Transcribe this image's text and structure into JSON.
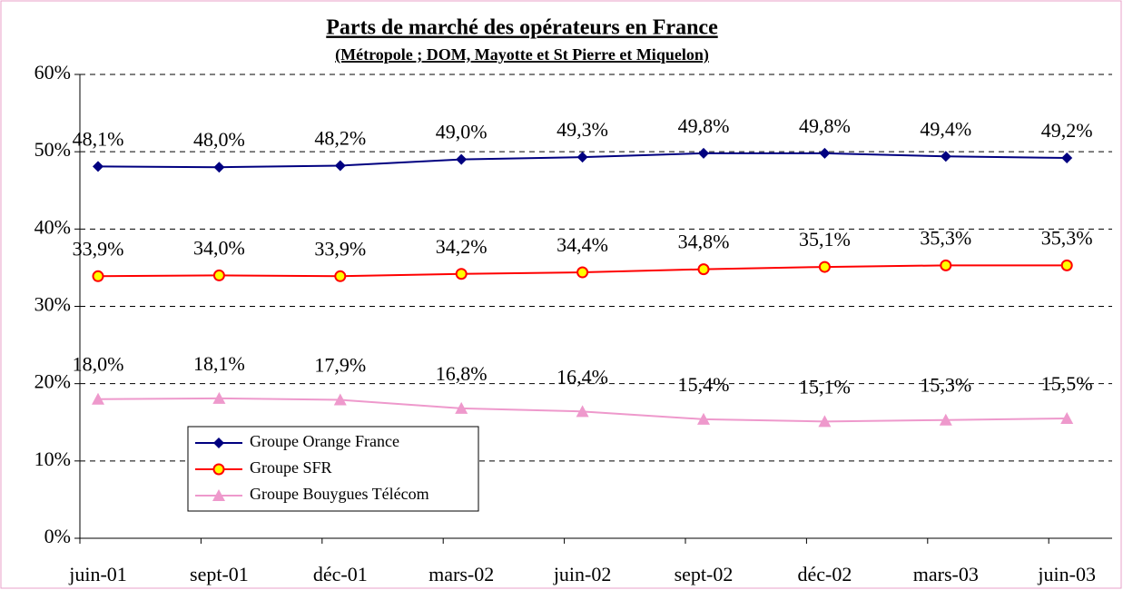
{
  "chart_data": {
    "type": "line",
    "title": "Parts de marché des opérateurs en France",
    "subtitle": "(Métropole ; DOM, Mayotte et St Pierre et Miquelon)",
    "categories": [
      "juin-01",
      "sept-01",
      "déc-01",
      "mars-02",
      "juin-02",
      "sept-02",
      "déc-02",
      "mars-03",
      "juin-03"
    ],
    "series": [
      {
        "name": "Groupe Orange France",
        "color": "#000080",
        "marker": "diamond",
        "values": [
          48.1,
          48.0,
          48.2,
          49.0,
          49.3,
          49.8,
          49.8,
          49.4,
          49.2
        ],
        "value_labels": [
          "48,1%",
          "48,0%",
          "48,2%",
          "49,0%",
          "49,3%",
          "49,8%",
          "49,8%",
          "49,4%",
          "49,2%"
        ]
      },
      {
        "name": "Groupe SFR",
        "color": "#ff0000",
        "marker": "circle",
        "values": [
          33.9,
          34.0,
          33.9,
          34.2,
          34.4,
          34.8,
          35.1,
          35.3,
          35.3
        ],
        "value_labels": [
          "33,9%",
          "34,0%",
          "33,9%",
          "34,2%",
          "34,4%",
          "34,8%",
          "35,1%",
          "35,3%",
          "35,3%"
        ]
      },
      {
        "name": "Groupe Bouygues Télécom",
        "color": "#ee99cc",
        "marker": "triangle",
        "values": [
          18.0,
          18.1,
          17.9,
          16.8,
          16.4,
          15.4,
          15.1,
          15.3,
          15.5
        ],
        "value_labels": [
          "18,0%",
          "18,1%",
          "17,9%",
          "16,8%",
          "16,4%",
          "15,4%",
          "15,1%",
          "15,3%",
          "15,5%"
        ]
      }
    ],
    "ylim": [
      0,
      60
    ],
    "yticks": [
      {
        "value": 0,
        "label": "0%"
      },
      {
        "value": 10,
        "label": "10%"
      },
      {
        "value": 20,
        "label": "20%"
      },
      {
        "value": 30,
        "label": "30%"
      },
      {
        "value": 40,
        "label": "40%"
      },
      {
        "value": 50,
        "label": "50%"
      },
      {
        "value": 60,
        "label": "60%"
      }
    ],
    "grid": true,
    "legend": "lower left"
  }
}
